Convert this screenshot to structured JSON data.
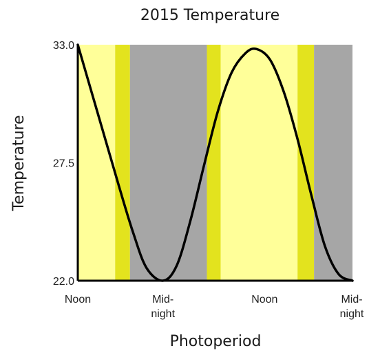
{
  "chart_data": {
    "type": "line",
    "title": "2015 Temperature",
    "xlabel": "Photoperiod",
    "ylabel": "Temperature",
    "ylim": [
      22.0,
      33.0
    ],
    "y_ticks": [
      "33.0",
      "27.5",
      "22.0"
    ],
    "xlim": [
      0,
      1
    ],
    "x_ticks": [
      {
        "pos": 0.0,
        "lines": [
          "Noon"
        ]
      },
      {
        "pos": 0.31,
        "lines": [
          "Mid-",
          "night"
        ]
      },
      {
        "pos": 0.68,
        "lines": [
          "Noon"
        ]
      },
      {
        "pos": 1.0,
        "lines": [
          "Mid-",
          "night"
        ]
      }
    ],
    "bands": [
      {
        "phase": "day",
        "x0": 0.0,
        "x1": 0.136,
        "color": "#ffff99"
      },
      {
        "phase": "twilight",
        "x0": 0.136,
        "x1": 0.19,
        "color": "#e3e31e"
      },
      {
        "phase": "night",
        "x0": 0.19,
        "x1": 0.47,
        "color": "#a6a6a6"
      },
      {
        "phase": "twilight",
        "x0": 0.47,
        "x1": 0.52,
        "color": "#e3e31e"
      },
      {
        "phase": "day",
        "x0": 0.52,
        "x1": 0.8,
        "color": "#ffff99"
      },
      {
        "phase": "twilight",
        "x0": 0.8,
        "x1": 0.86,
        "color": "#e3e31e"
      },
      {
        "phase": "night",
        "x0": 0.86,
        "x1": 1.0,
        "color": "#a6a6a6"
      }
    ],
    "series": [
      {
        "color": "#000000",
        "x": [
          0.0,
          0.05,
          0.1,
          0.15,
          0.2,
          0.25,
          0.31,
          0.36,
          0.41,
          0.46,
          0.51,
          0.56,
          0.61,
          0.65,
          0.7,
          0.75,
          0.8,
          0.85,
          0.9,
          0.95,
          1.0
        ],
        "y": [
          33.0,
          30.8,
          28.6,
          26.4,
          24.3,
          22.6,
          22.0,
          22.7,
          24.8,
          27.4,
          29.9,
          31.7,
          32.6,
          32.8,
          32.3,
          30.8,
          28.6,
          26.0,
          23.6,
          22.3,
          22.0
        ]
      }
    ],
    "grid": false,
    "legend": "none"
  }
}
